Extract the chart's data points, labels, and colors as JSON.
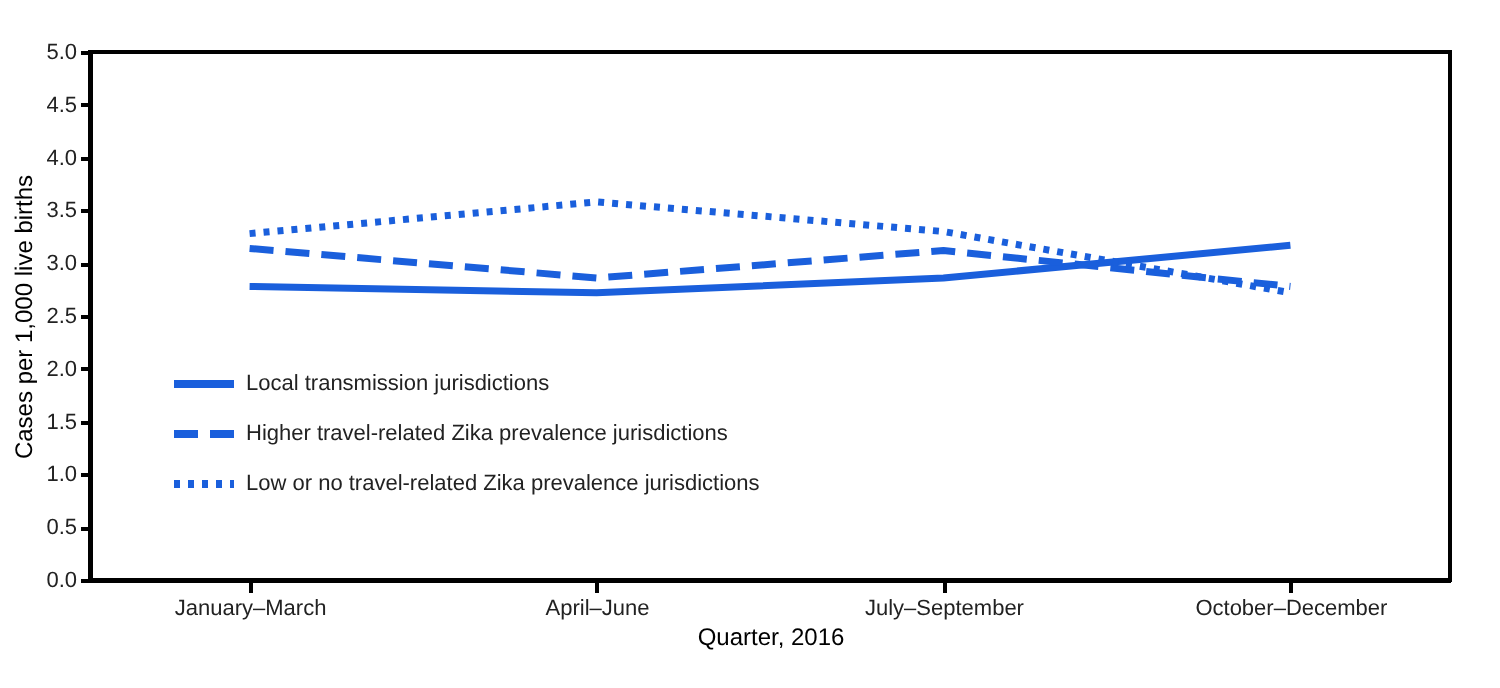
{
  "chart_data": {
    "type": "line",
    "xlabel": "Quarter, 2016",
    "ylabel": "Cases per 1,000 live births",
    "categories": [
      "January–March",
      "April–June",
      "July–September",
      "October–December"
    ],
    "series": [
      {
        "name": "Local transmission jurisdictions",
        "color": "#1a5fdc",
        "line_style": "solid",
        "values": [
          2.78,
          2.72,
          2.86,
          3.17
        ]
      },
      {
        "name": "Higher travel-related Zika prevalence jurisdictions",
        "color": "#1a5fdc",
        "line_style": "dashed",
        "values": [
          3.14,
          2.86,
          3.12,
          2.78
        ]
      },
      {
        "name": "Low or no travel-related Zika prevalence jurisdictions",
        "color": "#1a5fdc",
        "line_style": "dotted",
        "values": [
          3.28,
          3.58,
          3.3,
          2.72
        ]
      }
    ],
    "ylim": [
      0,
      5
    ],
    "yticks": [
      {
        "value": 0,
        "label": "0.0"
      },
      0.5,
      {
        "value": 1,
        "label": "1.0"
      },
      1.5,
      {
        "value": 2,
        "label": "2.0"
      },
      2.5,
      {
        "value": 3,
        "label": "3.0"
      },
      3.5,
      {
        "value": 4,
        "label": "4.0"
      },
      4.5,
      {
        "value": 5,
        "label": "5.0"
      }
    ],
    "grid": false,
    "legend": "bottom left",
    "marker": "none"
  }
}
